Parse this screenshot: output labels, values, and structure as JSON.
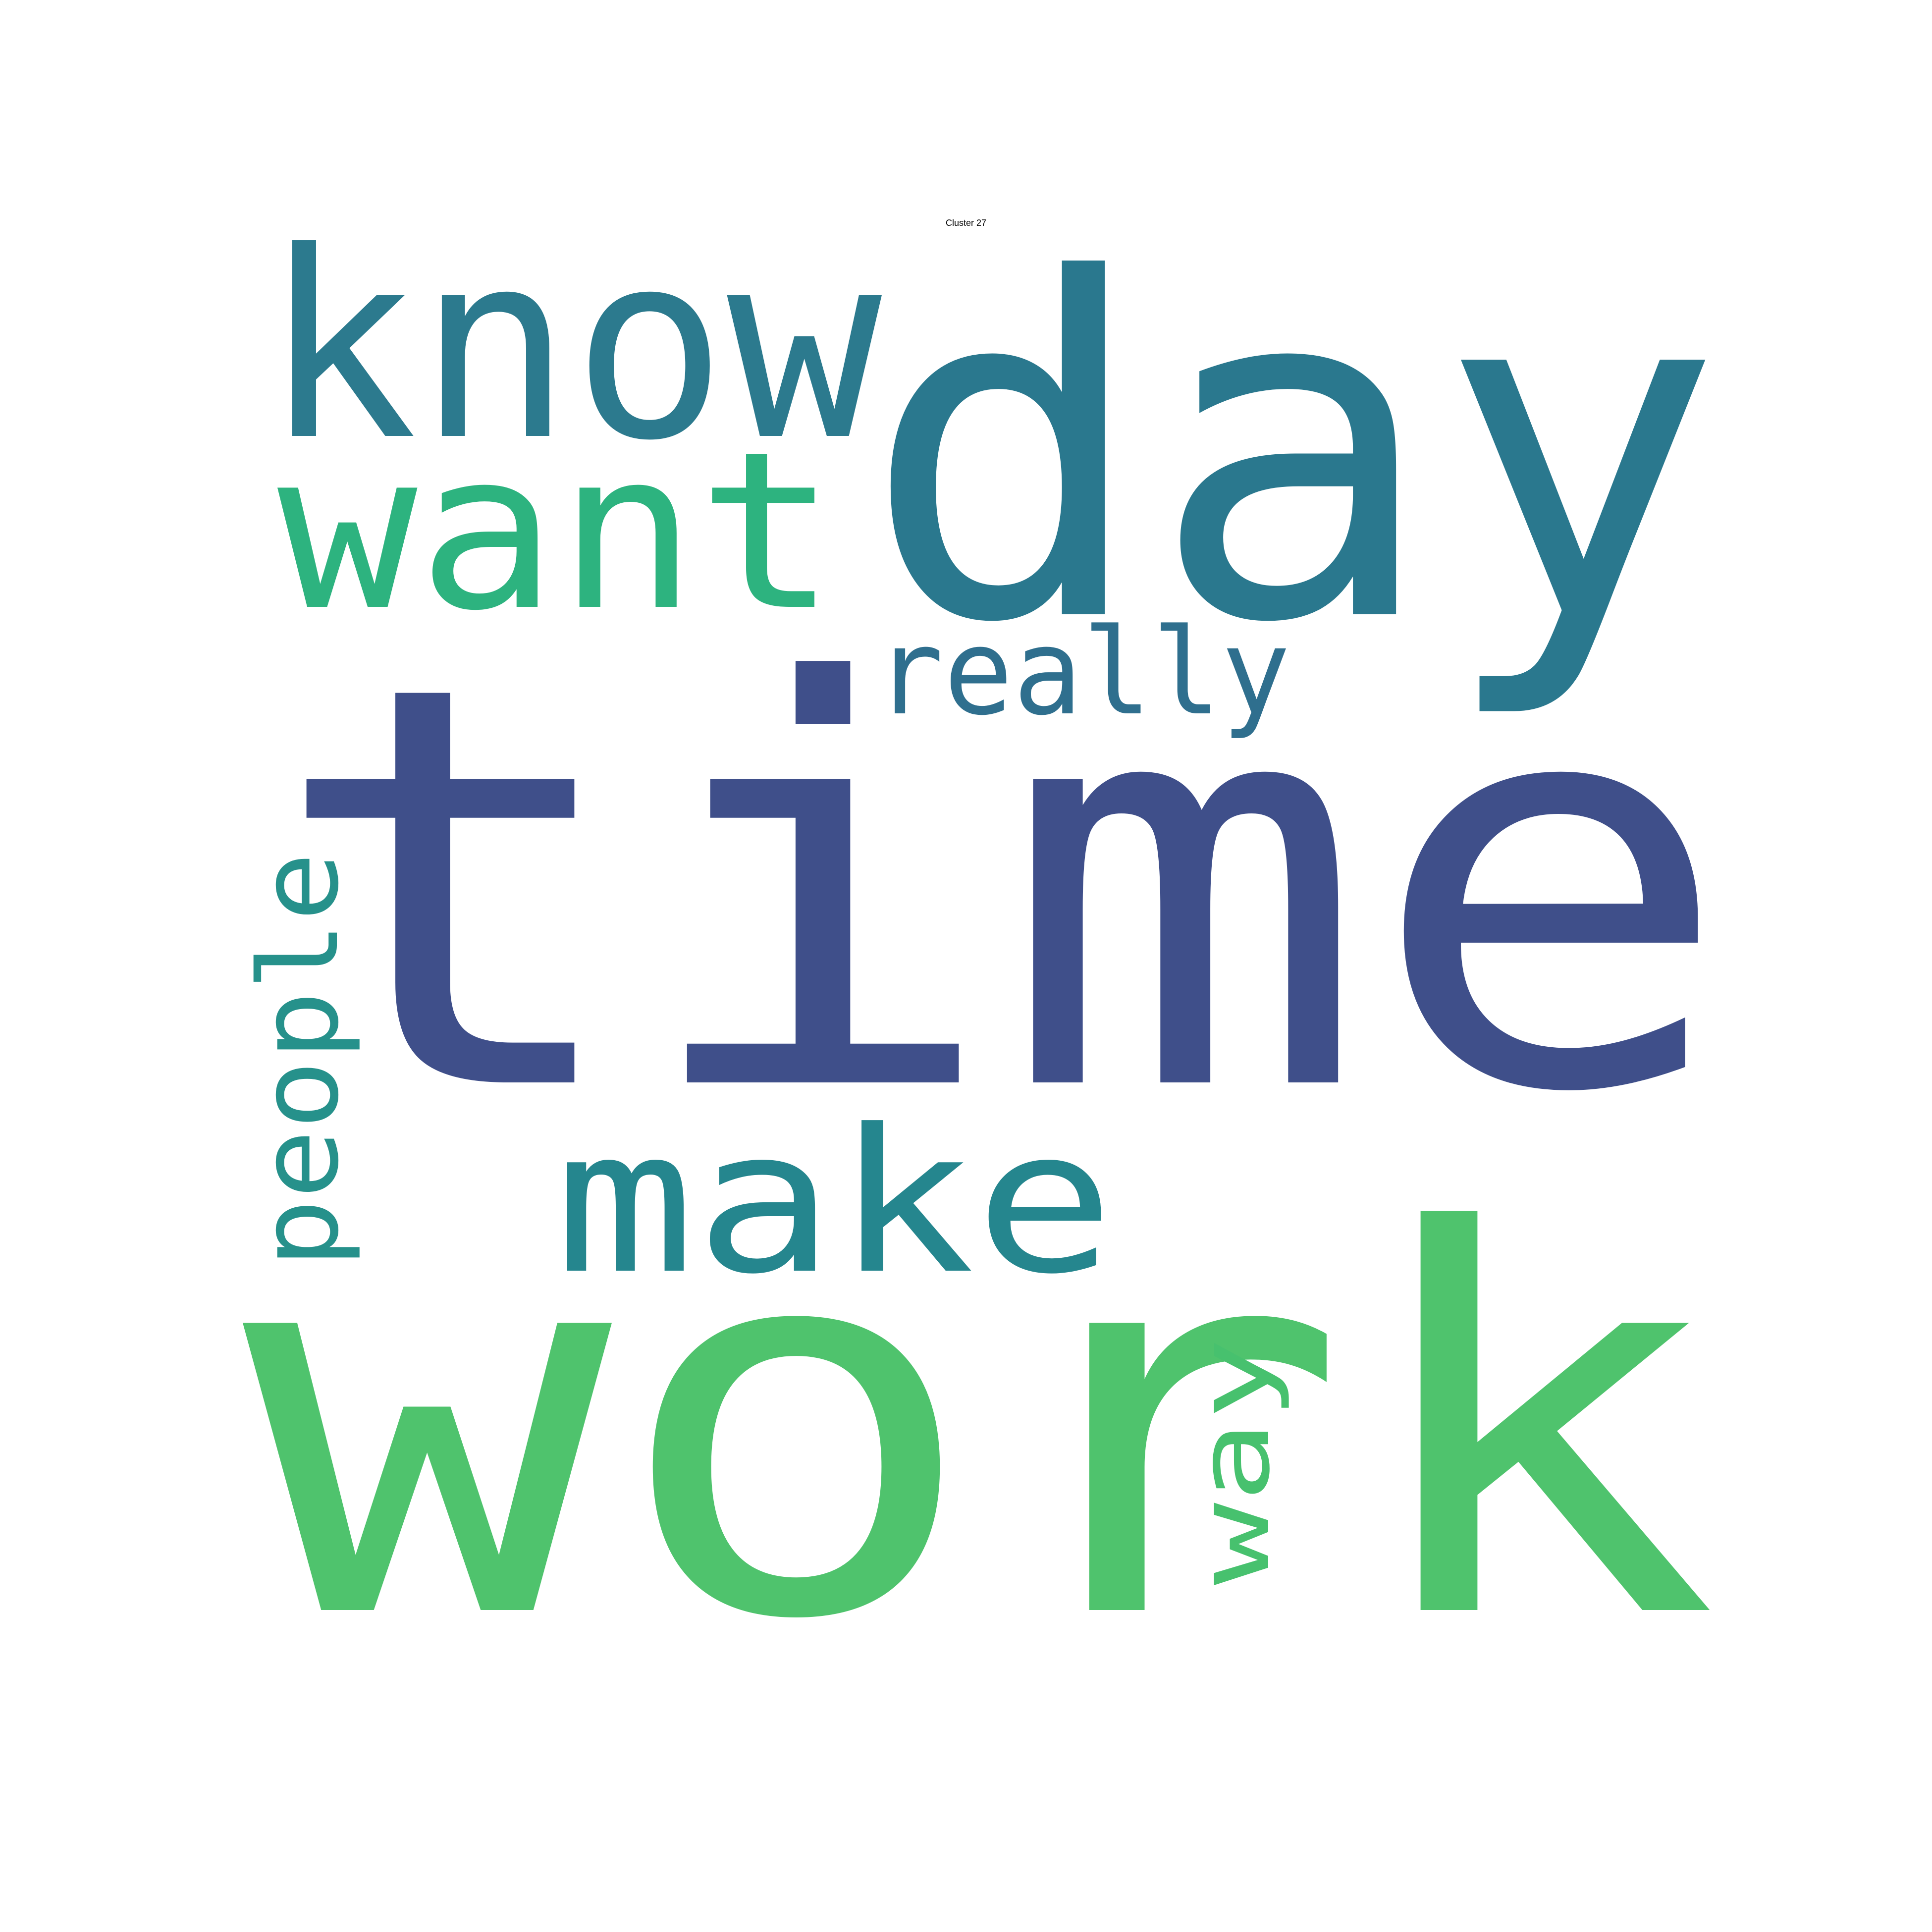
{
  "title": "Cluster 27",
  "words": [
    {
      "text": "time",
      "color": "#3f4f8a",
      "orientation": "horizontal"
    },
    {
      "text": "work",
      "color": "#4fc36d",
      "orientation": "horizontal"
    },
    {
      "text": "day",
      "color": "#2a788e",
      "orientation": "horizontal"
    },
    {
      "text": "know",
      "color": "#2c7a8e",
      "orientation": "horizontal"
    },
    {
      "text": "want",
      "color": "#2db37f",
      "orientation": "horizontal"
    },
    {
      "text": "make",
      "color": "#25868e",
      "orientation": "horizontal"
    },
    {
      "text": "really",
      "color": "#2f6f8e",
      "orientation": "horizontal"
    },
    {
      "text": "people",
      "color": "#26918b",
      "orientation": "vertical"
    },
    {
      "text": "way",
      "color": "#47c16e",
      "orientation": "vertical"
    }
  ]
}
